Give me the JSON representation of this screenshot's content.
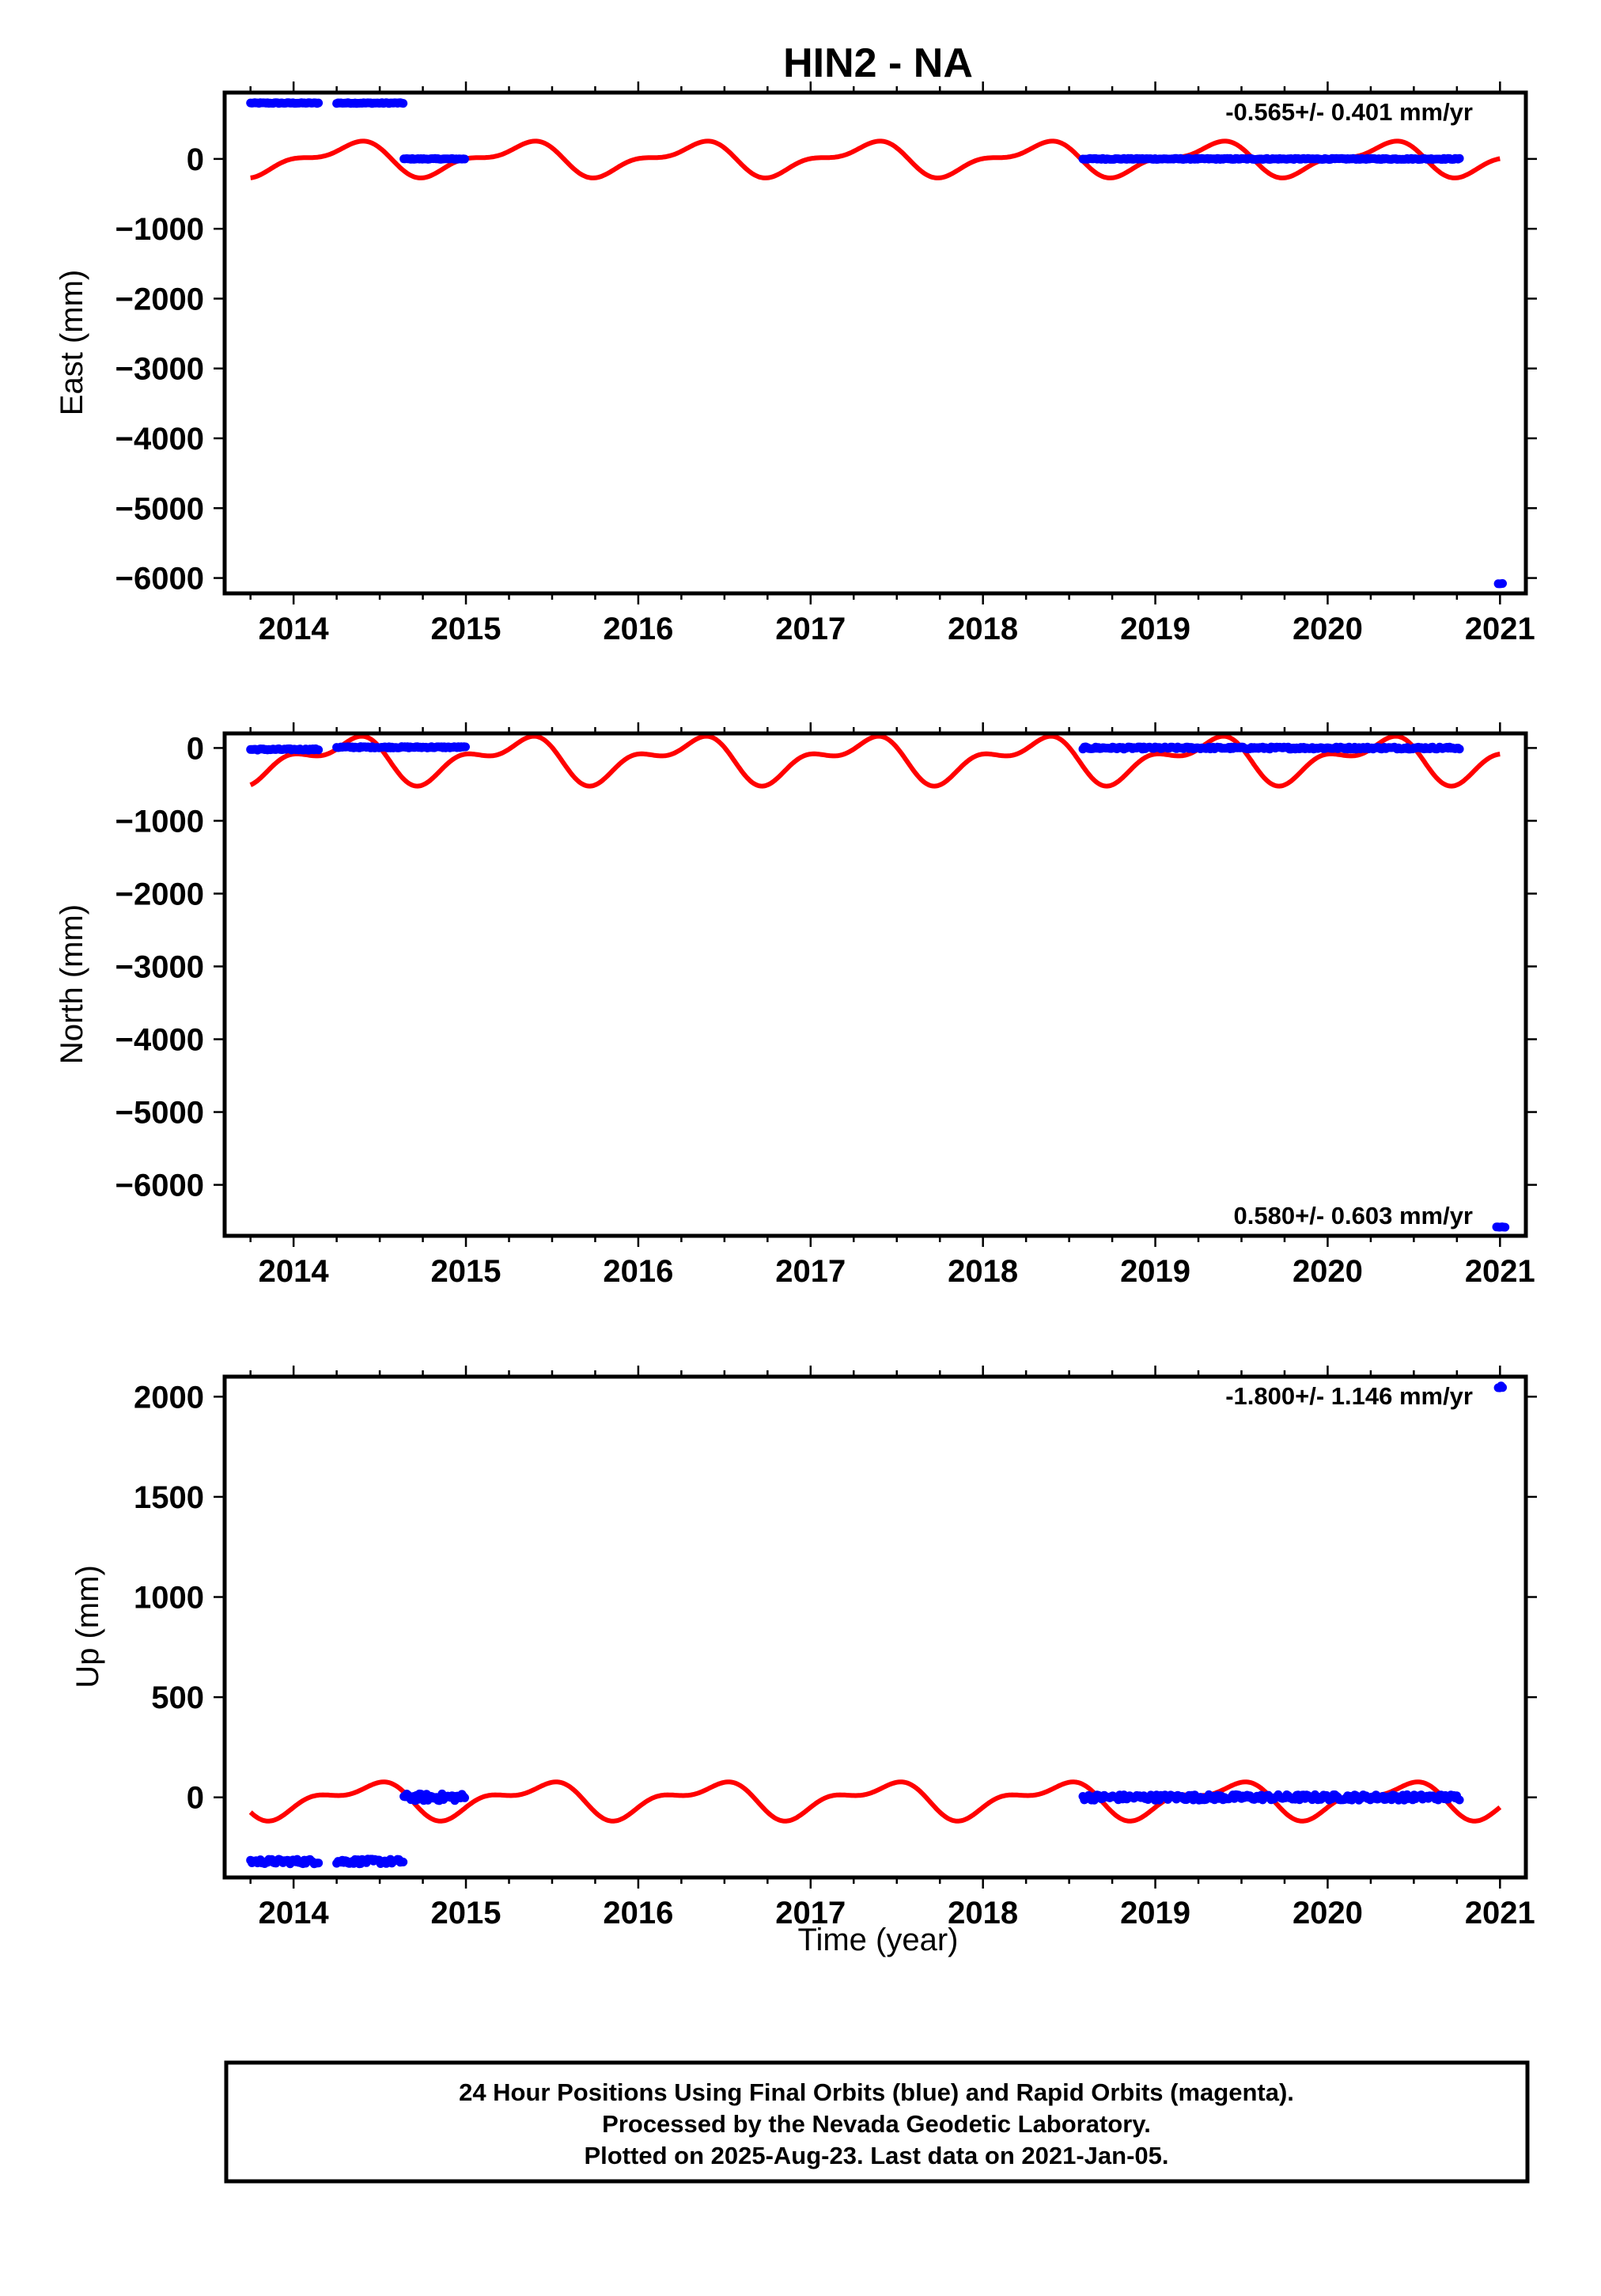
{
  "title": "HIN2 - NA",
  "xlabel": "Time (year)",
  "footer_lines": [
    "24 Hour Positions Using Final Orbits (blue) and Rapid Orbits (magenta).",
    "Processed by the Nevada Geodetic Laboratory.",
    "Plotted on 2025-Aug-23. Last data on 2021-Jan-05."
  ],
  "colors": {
    "data": "#0000ff",
    "model": "#ff0000",
    "frame": "#000000"
  },
  "chart_data": [
    {
      "type": "scatter",
      "component": "east",
      "ylabel": "East (mm)",
      "rate_label": "-0.565+/- 0.401 mm/yr",
      "xlim": [
        2013.6,
        2021.15
      ],
      "ylim": [
        -6220,
        950
      ],
      "xticks": [
        2014,
        2015,
        2016,
        2017,
        2018,
        2019,
        2020,
        2021
      ],
      "yticks": [
        0,
        -1000,
        -2000,
        -3000,
        -4000,
        -5000,
        -6000
      ],
      "data_segments": [
        {
          "x": [
            2013.75,
            2014.15
          ],
          "y": [
            800,
            800
          ],
          "scatter": 6
        },
        {
          "x": [
            2014.25,
            2014.64
          ],
          "y": [
            800,
            800
          ],
          "scatter": 6
        },
        {
          "x": [
            2014.64,
            2015.0
          ],
          "y": [
            0,
            0
          ],
          "scatter": 6
        },
        {
          "x": [
            2018.58,
            2020.77
          ],
          "y": [
            0,
            0
          ],
          "scatter": 8
        },
        {
          "x": [
            2020.99,
            2021.02
          ],
          "y": [
            -6080,
            -6080
          ],
          "scatter": 4
        }
      ],
      "model": {
        "x_start": 2013.75,
        "x_end": 2021.0,
        "offset": 0,
        "annual_amp": 205,
        "annual_phase": 5.9,
        "semiannual_amp": 100,
        "semiannual_phase": 2.2
      }
    },
    {
      "type": "scatter",
      "component": "north",
      "ylabel": "North (mm)",
      "rate_label": "0.580+/- 0.603 mm/yr",
      "xlim": [
        2013.6,
        2021.15
      ],
      "ylim": [
        -6700,
        200
      ],
      "xticks": [
        2014,
        2015,
        2016,
        2017,
        2018,
        2019,
        2020,
        2021
      ],
      "yticks": [
        0,
        -1000,
        -2000,
        -3000,
        -4000,
        -5000,
        -6000
      ],
      "data_segments": [
        {
          "x": [
            2013.75,
            2014.15
          ],
          "y": [
            -20,
            -20
          ],
          "scatter": 10
        },
        {
          "x": [
            2014.25,
            2015.0
          ],
          "y": [
            10,
            10
          ],
          "scatter": 10
        },
        {
          "x": [
            2018.58,
            2020.77
          ],
          "y": [
            0,
            0
          ],
          "scatter": 15
        },
        {
          "x": [
            2020.98,
            2021.03
          ],
          "y": [
            -6580,
            -6580
          ],
          "scatter": 4
        }
      ],
      "model": {
        "x_start": 2013.75,
        "x_end": 2021.0,
        "offset": -150,
        "annual_amp": 250,
        "annual_phase": 6.1,
        "semiannual_amp": 150,
        "semiannual_phase": 2.3
      }
    },
    {
      "type": "scatter",
      "component": "up",
      "ylabel": "Up (mm)",
      "rate_label": "-1.800+/- 1.146 mm/yr",
      "xlim": [
        2013.6,
        2021.15
      ],
      "ylim": [
        -400,
        2100
      ],
      "xticks": [
        2014,
        2015,
        2016,
        2017,
        2018,
        2019,
        2020,
        2021
      ],
      "yticks": [
        0,
        500,
        1000,
        1500,
        2000
      ],
      "data_segments": [
        {
          "x": [
            2013.75,
            2014.15
          ],
          "y": [
            -320,
            -320
          ],
          "scatter": 12
        },
        {
          "x": [
            2014.25,
            2014.64
          ],
          "y": [
            -320,
            -320
          ],
          "scatter": 12
        },
        {
          "x": [
            2014.64,
            2015.0
          ],
          "y": [
            0,
            0
          ],
          "scatter": 18
        },
        {
          "x": [
            2018.58,
            2020.77
          ],
          "y": [
            0,
            0
          ],
          "scatter": 14
        },
        {
          "x": [
            2020.99,
            2021.02
          ],
          "y": [
            2050,
            2050
          ],
          "scatter": 6
        }
      ],
      "model": {
        "x_start": 2013.75,
        "x_end": 2021.0,
        "offset": -10,
        "annual_amp": 75,
        "annual_phase": 5.3,
        "semiannual_amp": 40,
        "semiannual_phase": 0.6
      }
    }
  ]
}
